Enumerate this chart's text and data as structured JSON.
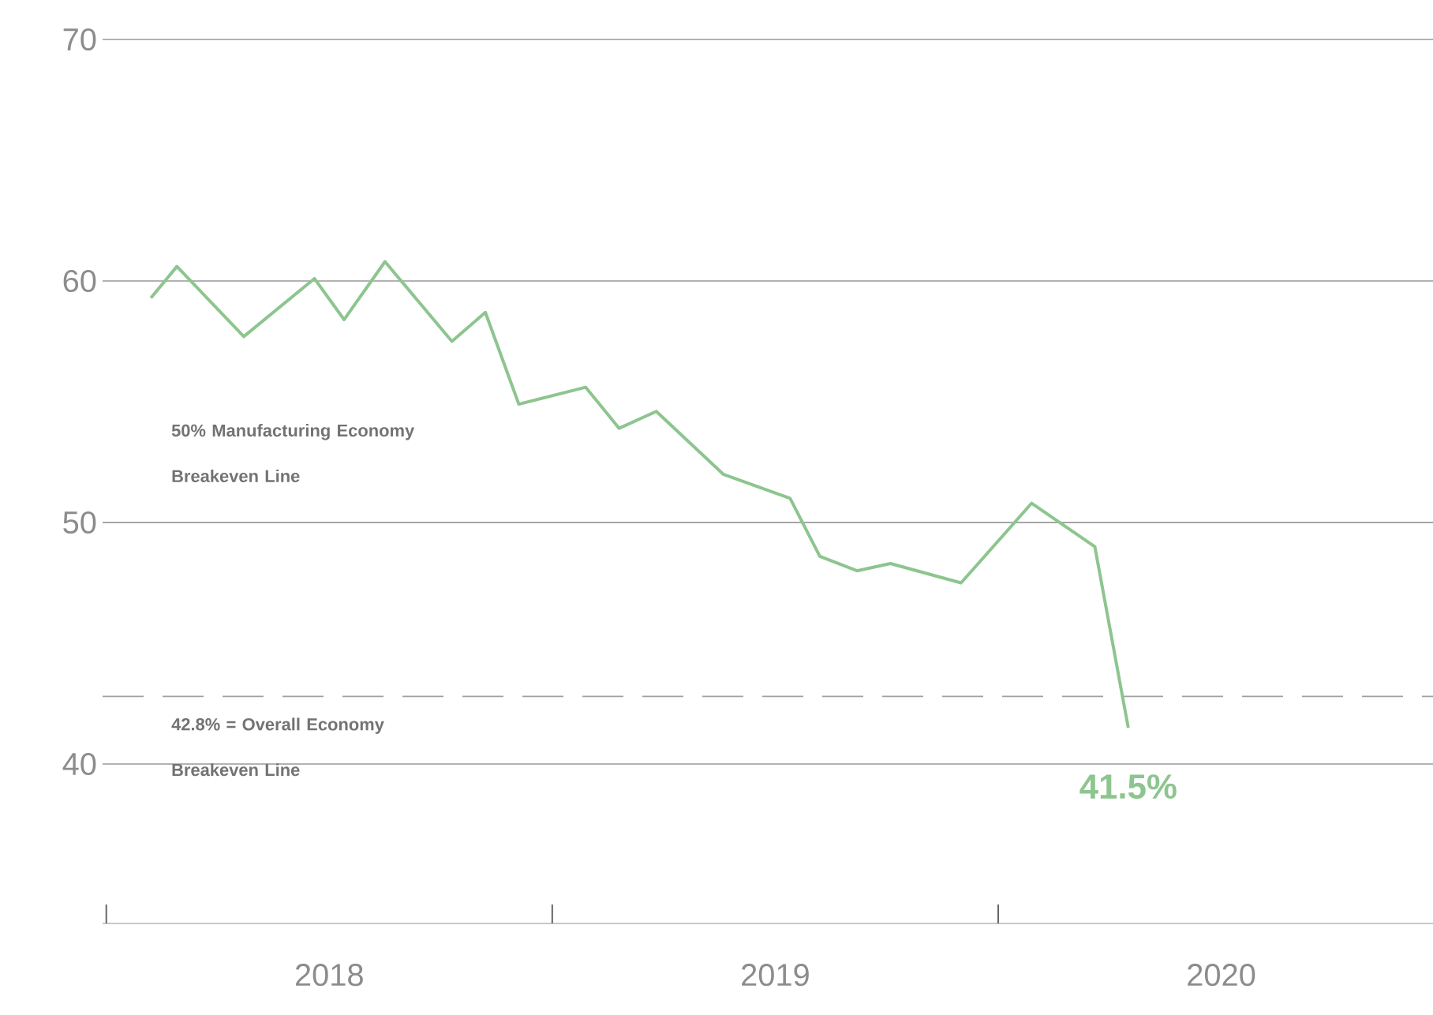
{
  "chart_data": {
    "type": "line",
    "x": [
      "2018-02-07",
      "2018-02-28",
      "2018-04-22",
      "2018-06-19",
      "2018-07-13",
      "2018-08-16",
      "2018-10-10",
      "2018-11-07",
      "2018-12-04",
      "2019-01-28",
      "2019-02-25",
      "2019-03-25",
      "2019-05-19",
      "2019-07-13",
      "2019-08-07",
      "2019-09-07",
      "2019-10-04",
      "2019-12-01",
      "2020-01-28",
      "2020-03-19",
      "2020-04-16"
    ],
    "series": [
      {
        "color": "#8dc58f",
        "values": [
          59.3,
          60.6,
          57.7,
          60.1,
          58.4,
          60.8,
          57.5,
          58.7,
          54.9,
          55.6,
          53.9,
          54.6,
          52.0,
          51.0,
          48.6,
          48.0,
          48.3,
          47.5,
          50.8,
          49.0,
          41.5
        ]
      }
    ],
    "xlim": [
      "2017-12-28",
      "2020-12-22"
    ],
    "xticks": [
      {
        "value": "2018-01-01",
        "label": null
      },
      {
        "value": "2018-07-01",
        "label": "2018"
      },
      {
        "value": "2019-01-01",
        "label": null
      },
      {
        "value": "2019-07-01",
        "label": "2019"
      },
      {
        "value": "2020-01-01",
        "label": null
      },
      {
        "value": "2020-07-01",
        "label": "2020"
      }
    ],
    "ylim": [
      33.4,
      70
    ],
    "yticks": [
      40,
      50,
      60,
      70
    ],
    "grid": "y",
    "ref_lines": [
      {
        "axis": "y",
        "value": 50,
        "label": "50% Manufacturing Economy Breakeven Line",
        "color": "#a0a0a0",
        "line_style": "solid"
      },
      {
        "axis": "y",
        "value": 42.8,
        "label": "42.8% = Overall Economy Breakeven Line",
        "color": "#a0a0a0",
        "line_style": "dashed"
      }
    ],
    "annotations": [
      {
        "text": "41.5%",
        "x": "2020-04-16",
        "y": 41.5
      }
    ],
    "marker": "none",
    "line_style": "solid"
  }
}
